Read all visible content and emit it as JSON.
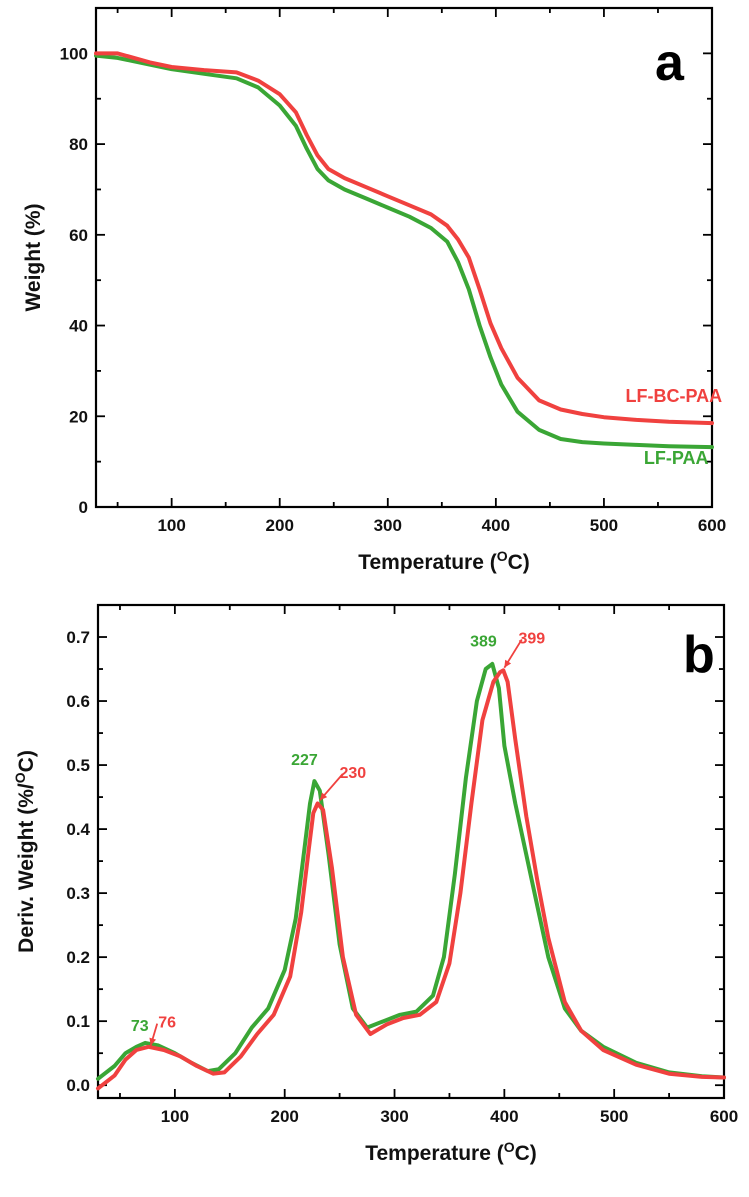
{
  "colors": {
    "green": "#3aa635",
    "red": "#f0413f"
  },
  "chart_data": [
    {
      "type": "line",
      "panel_label": "a",
      "xlabel": "Temperature (",
      "xlabel_sup": "O",
      "xlabel_end": "C)",
      "ylabel": "Weight (%)",
      "xlim": [
        30,
        600
      ],
      "ylim": [
        0,
        110
      ],
      "xticks": [
        "100",
        "200",
        "300",
        "400",
        "500",
        "600"
      ],
      "yticks": [
        "0",
        "20",
        "40",
        "60",
        "80",
        "100"
      ],
      "series": [
        {
          "name": "LF-PAA",
          "color": "#3aa635",
          "x": [
            30,
            50,
            80,
            100,
            130,
            160,
            180,
            200,
            215,
            225,
            235,
            245,
            260,
            280,
            300,
            320,
            340,
            355,
            365,
            375,
            385,
            395,
            405,
            420,
            440,
            460,
            480,
            500,
            530,
            560,
            600
          ],
          "y": [
            99.5,
            99,
            97.5,
            96.5,
            95.5,
            94.5,
            92.5,
            88.5,
            84,
            79,
            74.5,
            72,
            70,
            68,
            66,
            64,
            61.5,
            58.5,
            54,
            48,
            40,
            33,
            27,
            21,
            17,
            15,
            14.3,
            14,
            13.7,
            13.4,
            13.2
          ]
        },
        {
          "name": "LF-BC-PAA",
          "color": "#f0413f",
          "x": [
            30,
            50,
            80,
            100,
            130,
            160,
            180,
            200,
            215,
            225,
            235,
            245,
            260,
            280,
            300,
            320,
            340,
            355,
            365,
            375,
            385,
            395,
            405,
            420,
            440,
            460,
            480,
            500,
            530,
            560,
            600
          ],
          "y": [
            100,
            100,
            98,
            97,
            96.3,
            95.8,
            94,
            91,
            87,
            82,
            77.5,
            74.5,
            72.5,
            70.5,
            68.5,
            66.5,
            64.5,
            62,
            59,
            55,
            48,
            40.5,
            35,
            28.5,
            23.5,
            21.5,
            20.5,
            19.8,
            19.2,
            18.8,
            18.5
          ]
        }
      ],
      "annotations": [
        {
          "text": "LF-BC-PAA",
          "color": "#f0413f",
          "x": 520,
          "y": 23.2
        },
        {
          "text": "LF-PAA",
          "color": "#3aa635",
          "x": 537,
          "y": 9.5
        }
      ]
    },
    {
      "type": "line",
      "panel_label": "b",
      "xlabel": "Temperature (",
      "xlabel_sup": "O",
      "xlabel_end": "C)",
      "ylabel": "Deriv. Weight (%/",
      "ylabel_sup": "O",
      "ylabel_end": "C)",
      "xlim": [
        30,
        600
      ],
      "ylim": [
        -0.02,
        0.75
      ],
      "xticks": [
        "100",
        "200",
        "300",
        "400",
        "500",
        "600"
      ],
      "yticks": [
        "0.0",
        "0.1",
        "0.2",
        "0.3",
        "0.4",
        "0.5",
        "0.6",
        "0.7"
      ],
      "series": [
        {
          "name": "LF-PAA",
          "color": "#3aa635",
          "x": [
            30,
            45,
            55,
            65,
            73,
            85,
            100,
            115,
            130,
            140,
            155,
            170,
            185,
            200,
            210,
            218,
            223,
            227,
            232,
            240,
            250,
            262,
            275,
            290,
            305,
            320,
            335,
            345,
            355,
            365,
            375,
            383,
            389,
            395,
            400,
            410,
            420,
            430,
            440,
            455,
            470,
            490,
            520,
            550,
            580,
            600
          ],
          "y": [
            0.01,
            0.03,
            0.05,
            0.06,
            0.066,
            0.062,
            0.05,
            0.035,
            0.022,
            0.025,
            0.05,
            0.09,
            0.12,
            0.18,
            0.26,
            0.37,
            0.44,
            0.475,
            0.46,
            0.36,
            0.22,
            0.12,
            0.09,
            0.1,
            0.11,
            0.115,
            0.14,
            0.2,
            0.33,
            0.48,
            0.6,
            0.65,
            0.658,
            0.62,
            0.53,
            0.44,
            0.36,
            0.28,
            0.2,
            0.12,
            0.085,
            0.06,
            0.035,
            0.02,
            0.014,
            0.012
          ]
        },
        {
          "name": "LF-BC-PAA",
          "color": "#f0413f",
          "x": [
            30,
            45,
            55,
            65,
            76,
            90,
            105,
            120,
            135,
            145,
            160,
            175,
            190,
            205,
            215,
            222,
            226,
            230,
            235,
            243,
            253,
            265,
            278,
            293,
            308,
            323,
            338,
            350,
            360,
            370,
            380,
            390,
            396,
            399,
            403,
            410,
            420,
            430,
            440,
            455,
            470,
            490,
            520,
            550,
            580,
            600
          ],
          "y": [
            -0.005,
            0.015,
            0.04,
            0.055,
            0.06,
            0.055,
            0.045,
            0.03,
            0.018,
            0.02,
            0.045,
            0.08,
            0.11,
            0.17,
            0.27,
            0.37,
            0.425,
            0.44,
            0.43,
            0.34,
            0.2,
            0.11,
            0.08,
            0.095,
            0.105,
            0.11,
            0.13,
            0.19,
            0.3,
            0.44,
            0.57,
            0.63,
            0.645,
            0.648,
            0.63,
            0.54,
            0.42,
            0.32,
            0.23,
            0.13,
            0.085,
            0.055,
            0.032,
            0.018,
            0.013,
            0.012
          ]
        }
      ],
      "annotations": [
        {
          "text": "73",
          "color": "#3aa635",
          "x": 68,
          "y": 0.085
        },
        {
          "text": "76",
          "color": "#f0413f",
          "x": 93,
          "y": 0.09,
          "arrow_to": [
            78,
            0.062
          ]
        },
        {
          "text": "227",
          "color": "#3aa635",
          "x": 218,
          "y": 0.5
        },
        {
          "text": "230",
          "color": "#f0413f",
          "x": 262,
          "y": 0.48,
          "arrow_to": [
            232,
            0.445
          ]
        },
        {
          "text": "389",
          "color": "#3aa635",
          "x": 381,
          "y": 0.685
        },
        {
          "text": "399",
          "color": "#f0413f",
          "x": 425,
          "y": 0.69,
          "arrow_to": [
            400,
            0.652
          ]
        }
      ]
    }
  ]
}
